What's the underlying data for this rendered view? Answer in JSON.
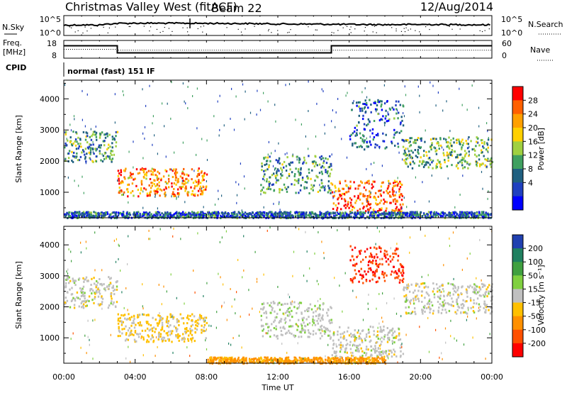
{
  "header": {
    "title": "Christmas Valley West (fitACF)",
    "beam": "Beam 22",
    "date": "12/Aug/2014"
  },
  "top_panel": {
    "left_label": "N.Sky",
    "left_ticks": [
      "10^5",
      "10^0"
    ],
    "right_label": "N.Search",
    "right_ticks": [
      "10^5",
      "10^0"
    ]
  },
  "freq_panel": {
    "left_label_line1": "Freq.",
    "left_label_line2": "[MHz]",
    "left_ticks": [
      "18",
      "8"
    ],
    "right_label": "Nave",
    "right_ticks": [
      "60",
      "0"
    ]
  },
  "cpid": {
    "label": "CPID",
    "value": "normal (fast) 151 IF"
  },
  "power_panel": {
    "ylabel": "Slant Range [km]",
    "colorbar_label": "Power [dB]",
    "colorbar_ticks": [
      "28",
      "24",
      "20",
      "16",
      "12",
      "8",
      "4"
    ],
    "colorbar_colors": [
      "#ff0000",
      "#ff6000",
      "#ffa000",
      "#ffd000",
      "#a0d040",
      "#40a060",
      "#206080",
      "#2040c0",
      "#0000ff"
    ]
  },
  "velocity_panel": {
    "ylabel": "Slant Range [km]",
    "colorbar_label": "Velocity [m s⁻¹]",
    "colorbar_ticks": [
      "200",
      "100",
      "50",
      "15",
      "-15",
      "-50",
      "-100",
      "-200"
    ],
    "colorbar_colors": [
      "#2040b0",
      "#208060",
      "#40a040",
      "#80d040",
      "#c0c0c0",
      "#ffc000",
      "#ff9000",
      "#ff5000",
      "#ff0000"
    ]
  },
  "xaxis": {
    "label": "Time UT",
    "ticks": [
      "00:00",
      "04:00",
      "08:00",
      "12:00",
      "16:00",
      "20:00",
      "00:00"
    ]
  },
  "chart_data": [
    {
      "type": "line",
      "title": "",
      "xlabel": "",
      "ylabel": "N.Sky / N.Search",
      "x_range": [
        "00:00",
        "24:00"
      ],
      "series": [
        {
          "name": "N.Sky",
          "x": [
            0,
            1,
            2,
            3,
            4,
            6,
            8,
            10,
            12,
            14,
            16,
            18,
            20,
            22,
            24
          ],
          "values": [
            400,
            500,
            450,
            1500,
            1800,
            1700,
            1600,
            1400,
            1000,
            900,
            700,
            600,
            700,
            600,
            500
          ]
        }
      ]
    },
    {
      "type": "line",
      "title": "",
      "xlabel": "",
      "ylabel": "Freq. [MHz]",
      "ylim": [
        8,
        18
      ],
      "x_range": [
        "00:00",
        "24:00"
      ],
      "series": [
        {
          "name": "Freq.",
          "x": [
            0,
            3,
            3,
            15,
            15,
            24
          ],
          "values": [
            15,
            15,
            11,
            11,
            15,
            15
          ]
        },
        {
          "name": "Nave",
          "x": [
            0,
            3,
            3,
            24
          ],
          "values": [
            30,
            30,
            27,
            27
          ]
        }
      ]
    },
    {
      "type": "heatmap",
      "title": "",
      "xlabel": "",
      "ylabel": "Slant Range [km]",
      "ylim": [
        180,
        4600
      ],
      "x_range": [
        "00:00",
        "24:00"
      ],
      "colorbar": "Power [dB]",
      "regions": [
        {
          "t": [
            0,
            3
          ],
          "range": [
            2000,
            3000
          ],
          "power": 10
        },
        {
          "t": [
            3,
            8
          ],
          "range": [
            900,
            1800
          ],
          "power": 22
        },
        {
          "t": [
            11,
            15
          ],
          "range": [
            1000,
            2200
          ],
          "power": 10
        },
        {
          "t": [
            15,
            19
          ],
          "range": [
            400,
            1400
          ],
          "power": 24
        },
        {
          "t": [
            16,
            19
          ],
          "range": [
            2400,
            4000
          ],
          "power": 6
        },
        {
          "t": [
            19,
            24
          ],
          "range": [
            1800,
            2800
          ],
          "power": 12
        },
        {
          "t": [
            0,
            24
          ],
          "range": [
            200,
            400
          ],
          "power": 6
        }
      ]
    },
    {
      "type": "heatmap",
      "title": "",
      "xlabel": "Time UT",
      "ylabel": "Slant Range [km]",
      "ylim": [
        180,
        4600
      ],
      "x_range": [
        "00:00",
        "24:00"
      ],
      "colorbar": "Velocity [m s⁻¹]",
      "regions": [
        {
          "t": [
            0,
            3
          ],
          "range": [
            2000,
            3000
          ],
          "velocity": 0
        },
        {
          "t": [
            3,
            8
          ],
          "range": [
            900,
            1800
          ],
          "velocity": -20
        },
        {
          "t": [
            11,
            15
          ],
          "range": [
            1000,
            2200
          ],
          "velocity": 5
        },
        {
          "t": [
            15,
            19
          ],
          "range": [
            400,
            1400
          ],
          "velocity": 0
        },
        {
          "t": [
            16,
            19
          ],
          "range": [
            2800,
            4000
          ],
          "velocity": -200
        },
        {
          "t": [
            19,
            24
          ],
          "range": [
            1800,
            2800
          ],
          "velocity": 0
        },
        {
          "t": [
            8,
            18
          ],
          "range": [
            200,
            400
          ],
          "velocity": -60
        }
      ]
    }
  ]
}
